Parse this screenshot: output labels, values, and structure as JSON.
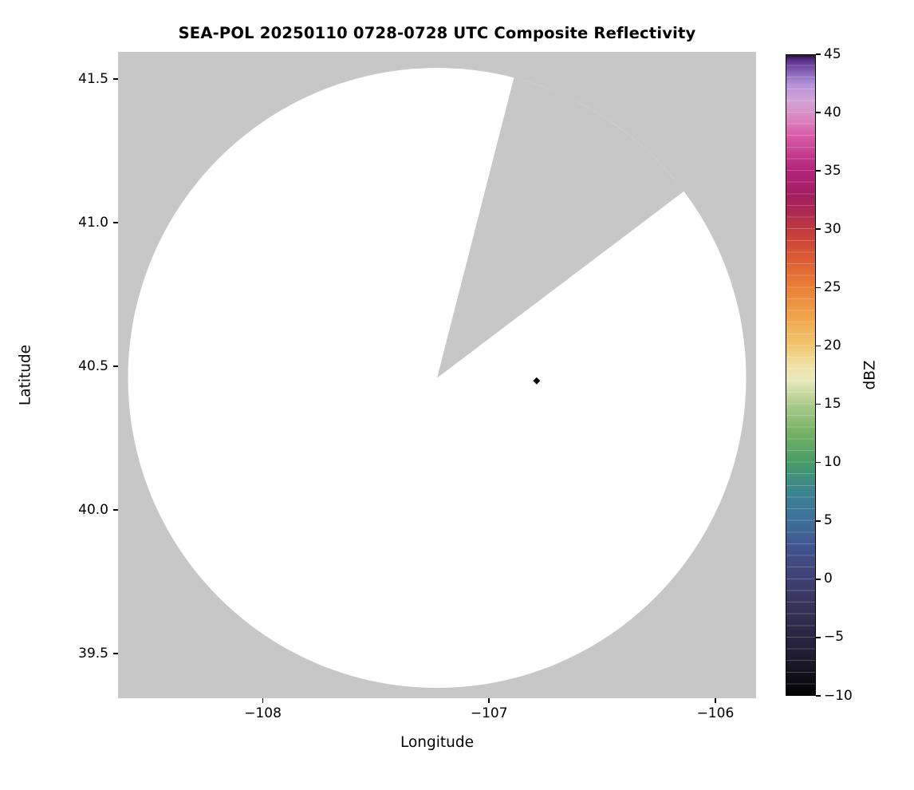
{
  "figure": {
    "background": "#ffffff"
  },
  "chart_data": {
    "type": "heatmap",
    "title": "SEA-POL 20250110 0728-0728 UTC Composite Reflectivity",
    "xlabel": "Longitude",
    "ylabel": "Latitude",
    "xlim": [
      -108.64,
      -105.82
    ],
    "ylim": [
      39.345,
      41.595
    ],
    "grid": false,
    "x_ticks": [
      {
        "value": -108,
        "label": "−108"
      },
      {
        "value": -107,
        "label": "−107"
      },
      {
        "value": -106,
        "label": "−106"
      }
    ],
    "y_ticks": [
      {
        "value": 41.5,
        "label": "41.5"
      },
      {
        "value": 41.0,
        "label": "41.0"
      },
      {
        "value": 40.5,
        "label": "40.5"
      },
      {
        "value": 40.0,
        "label": "40.0"
      },
      {
        "value": 39.5,
        "label": "39.5"
      }
    ],
    "radar_coverage": {
      "no_data_color": "#c7c7c7",
      "coverage_color": "#ffffff",
      "center_lon": -107.23,
      "center_lat": 40.46,
      "radius_lon_deg": 1.366,
      "radius_lat_deg": 1.079,
      "missing_sector_azimuth_start_deg": 14.4,
      "missing_sector_azimuth_end_deg": 53.0
    },
    "markers": [
      {
        "name": "reflectivity-echo",
        "lon": -106.79,
        "lat": 40.45,
        "shape": "diamond",
        "color": "#0a0a0a"
      }
    ],
    "colorbar": {
      "label": "dBZ",
      "min": -10,
      "max": 45,
      "step_dbz": 1,
      "ticks": [
        {
          "value": 45,
          "label": "45"
        },
        {
          "value": 40,
          "label": "40"
        },
        {
          "value": 35,
          "label": "35"
        },
        {
          "value": 30,
          "label": "30"
        },
        {
          "value": 25,
          "label": "25"
        },
        {
          "value": 20,
          "label": "20"
        },
        {
          "value": 15,
          "label": "15"
        },
        {
          "value": 10,
          "label": "10"
        },
        {
          "value": 5,
          "label": "5"
        },
        {
          "value": 0,
          "label": "0"
        },
        {
          "value": -5,
          "label": "−5"
        },
        {
          "value": -10,
          "label": "−10"
        }
      ],
      "gradient_stops": [
        {
          "v": -10,
          "c": "#030303"
        },
        {
          "v": -7.5,
          "c": "#191627"
        },
        {
          "v": -5,
          "c": "#2a2640"
        },
        {
          "v": -2.5,
          "c": "#363257"
        },
        {
          "v": 0,
          "c": "#3e4174"
        },
        {
          "v": 2.5,
          "c": "#41538c"
        },
        {
          "v": 5,
          "c": "#3e6f9a"
        },
        {
          "v": 7.5,
          "c": "#3a8590"
        },
        {
          "v": 10,
          "c": "#479c67"
        },
        {
          "v": 12.5,
          "c": "#74b163"
        },
        {
          "v": 15,
          "c": "#abcc8c"
        },
        {
          "v": 17,
          "c": "#e8e9bd"
        },
        {
          "v": 18.5,
          "c": "#f0dfa3"
        },
        {
          "v": 20,
          "c": "#f0c66f"
        },
        {
          "v": 22.5,
          "c": "#efa54a"
        },
        {
          "v": 25,
          "c": "#ea8038"
        },
        {
          "v": 27.5,
          "c": "#dc5b33"
        },
        {
          "v": 30,
          "c": "#c13a3d"
        },
        {
          "v": 31.5,
          "c": "#ab2850"
        },
        {
          "v": 33,
          "c": "#a31d62"
        },
        {
          "v": 35,
          "c": "#b12579"
        },
        {
          "v": 36.5,
          "c": "#c63b8f"
        },
        {
          "v": 38,
          "c": "#d65ba6"
        },
        {
          "v": 39.5,
          "c": "#dc84bf"
        },
        {
          "v": 41,
          "c": "#d3a3d6"
        },
        {
          "v": 42.5,
          "c": "#b393d8"
        },
        {
          "v": 43.5,
          "c": "#8a64b8"
        },
        {
          "v": 44.5,
          "c": "#5c3390"
        },
        {
          "v": 45,
          "c": "#2a1040"
        }
      ]
    }
  }
}
